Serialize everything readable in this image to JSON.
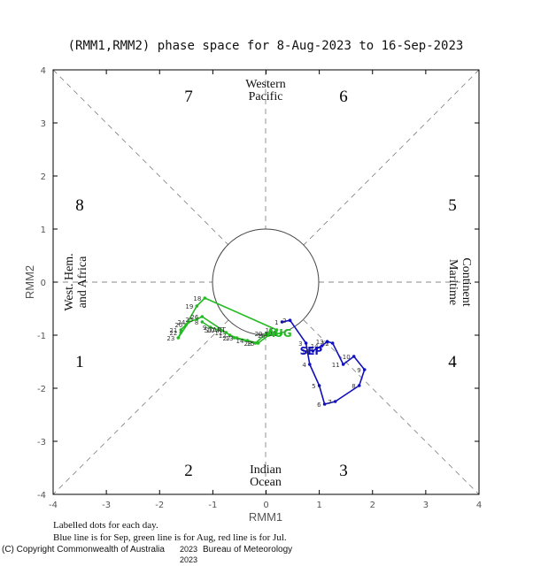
{
  "title": "(RMM1,RMM2) phase space for  8-Aug-2023 to 16-Sep-2023",
  "xlabel": "RMM1",
  "ylabel": "RMM2",
  "phase_numbers": [
    "1",
    "2",
    "3",
    "4",
    "5",
    "6",
    "7",
    "8"
  ],
  "region_labels": {
    "top_line1": "Western",
    "top_line2": "Pacific",
    "bottom_line1": "Indian",
    "bottom_line2": "Ocean",
    "left_line1": "West. Hem.",
    "left_line2": "and Africa",
    "right_line1": "Maritime",
    "right_line2": "Continent"
  },
  "notes": {
    "line1": "Labelled dots for each day.",
    "line2": "Blue line is for Sep, green line is for Aug, red line is for Jul."
  },
  "copyright": "(C) Copyright Commonwealth of Australia",
  "year_stamp": "2023",
  "copyright_tail": "Bureau of Meteorology",
  "chart_data": {
    "type": "line",
    "xlim": [
      -4,
      4
    ],
    "ylim": [
      -4,
      4
    ],
    "xticks": [
      "-4",
      "-3",
      "-2",
      "-1",
      "0",
      "1",
      "2",
      "3",
      "4"
    ],
    "yticks": [
      "-4",
      "-3",
      "-2",
      "-1",
      "0",
      "1",
      "2",
      "3",
      "4"
    ],
    "amplitude_circle_radius": 1,
    "grid": false,
    "series": [
      {
        "name": "Aug",
        "color": "#22bb22",
        "start_label": "START",
        "end_label": "AUG",
        "points": [
          {
            "d": "8",
            "x": -1.2,
            "y": -0.75
          },
          {
            "d": "9",
            "x": -1.05,
            "y": -0.85
          },
          {
            "d": "10",
            "x": -0.9,
            "y": -0.9
          },
          {
            "d": "11",
            "x": -0.75,
            "y": -0.95
          },
          {
            "d": "12",
            "x": -0.68,
            "y": -1.0
          },
          {
            "d": "13",
            "x": -0.55,
            "y": -1.05
          },
          {
            "d": "14",
            "x": -0.35,
            "y": -1.1
          },
          {
            "d": "15",
            "x": -0.15,
            "y": -1.15
          },
          {
            "d": "16",
            "x": 0.05,
            "y": -1.0
          },
          {
            "d": "17",
            "x": 0.2,
            "y": -0.9
          },
          {
            "d": "18",
            "x": -1.15,
            "y": -0.3
          },
          {
            "d": "19",
            "x": -1.3,
            "y": -0.45
          },
          {
            "d": "20",
            "x": -1.5,
            "y": -0.8
          },
          {
            "d": "21",
            "x": -1.6,
            "y": -0.9
          },
          {
            "d": "22",
            "x": -1.6,
            "y": -0.95
          },
          {
            "d": "23",
            "x": -1.65,
            "y": -1.05
          },
          {
            "d": "24",
            "x": -1.45,
            "y": -0.75
          },
          {
            "d": "25",
            "x": -1.3,
            "y": -0.7
          },
          {
            "d": "26",
            "x": -1.2,
            "y": -0.65
          },
          {
            "d": "27",
            "x": -0.6,
            "y": -1.05
          },
          {
            "d": "28",
            "x": -0.2,
            "y": -1.15
          },
          {
            "d": "29",
            "x": 0.0,
            "y": -0.97
          },
          {
            "d": "30",
            "x": 0.18,
            "y": -0.97
          },
          {
            "d": "31",
            "x": 0.28,
            "y": -0.97
          }
        ]
      },
      {
        "name": "Sep",
        "color": "#1111bb",
        "start_label": "",
        "end_label": "SEP",
        "points": [
          {
            "d": "1",
            "x": 0.3,
            "y": -0.75
          },
          {
            "d": "2",
            "x": 0.45,
            "y": -0.72
          },
          {
            "d": "3",
            "x": 0.75,
            "y": -1.15
          },
          {
            "d": "4",
            "x": 0.82,
            "y": -1.55
          },
          {
            "d": "5",
            "x": 1.0,
            "y": -1.95
          },
          {
            "d": "6",
            "x": 1.1,
            "y": -2.3
          },
          {
            "d": "7",
            "x": 1.3,
            "y": -2.25
          },
          {
            "d": "8",
            "x": 1.75,
            "y": -1.95
          },
          {
            "d": "9",
            "x": 1.85,
            "y": -1.65
          },
          {
            "d": "10",
            "x": 1.65,
            "y": -1.4
          },
          {
            "d": "11",
            "x": 1.45,
            "y": -1.55
          },
          {
            "d": "12",
            "x": 1.25,
            "y": -1.15
          },
          {
            "d": "13",
            "x": 1.15,
            "y": -1.12
          },
          {
            "d": "14",
            "x": 1.05,
            "y": -1.2
          },
          {
            "d": "15",
            "x": 0.95,
            "y": -1.25
          },
          {
            "d": "16",
            "x": 0.88,
            "y": -1.3
          }
        ]
      }
    ]
  }
}
